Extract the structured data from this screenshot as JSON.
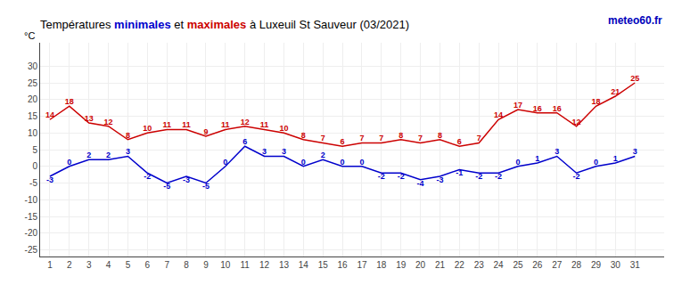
{
  "chart_data": {
    "type": "line",
    "title": "Températures minimales et maximales à Luxeuil St Sauveur (03/2021)",
    "y_label": "°C",
    "annotations": [
      "meteo60.fr"
    ],
    "x": [
      1,
      2,
      3,
      4,
      5,
      6,
      7,
      8,
      9,
      10,
      11,
      12,
      13,
      14,
      15,
      16,
      17,
      18,
      19,
      20,
      21,
      22,
      23,
      24,
      25,
      26,
      27,
      28,
      29,
      30,
      31
    ],
    "series": [
      {
        "name": "minimales",
        "color": "#0000cc",
        "values": [
          -3,
          0,
          2,
          2,
          3,
          -2,
          -5,
          -3,
          -5,
          0,
          6,
          3,
          3,
          0,
          2,
          0,
          0,
          -2,
          -2,
          -4,
          -3,
          -1,
          -2,
          -2,
          0,
          1,
          3,
          -2,
          0,
          1,
          3
        ]
      },
      {
        "name": "maximales",
        "color": "#cc0000",
        "values": [
          14,
          18,
          13,
          12,
          8,
          10,
          11,
          11,
          9,
          11,
          12,
          11,
          10,
          8,
          7,
          6,
          7,
          7,
          8,
          7,
          8,
          6,
          7,
          14,
          17,
          16,
          16,
          12,
          18,
          21,
          25
        ]
      }
    ],
    "xlim": [
      0.5,
      32.5
    ],
    "xticks": [
      1,
      2,
      3,
      4,
      5,
      6,
      7,
      8,
      9,
      10,
      11,
      12,
      13,
      14,
      15,
      16,
      17,
      18,
      19,
      20,
      21,
      22,
      23,
      24,
      25,
      26,
      27,
      28,
      29,
      30,
      31
    ],
    "ylim": [
      -27,
      37
    ],
    "yticks": [
      -25,
      -20,
      -15,
      -10,
      -5,
      0,
      5,
      10,
      15,
      20,
      25,
      30
    ],
    "grid": true,
    "data_labels": true,
    "annotation_color": "#0000bb"
  }
}
